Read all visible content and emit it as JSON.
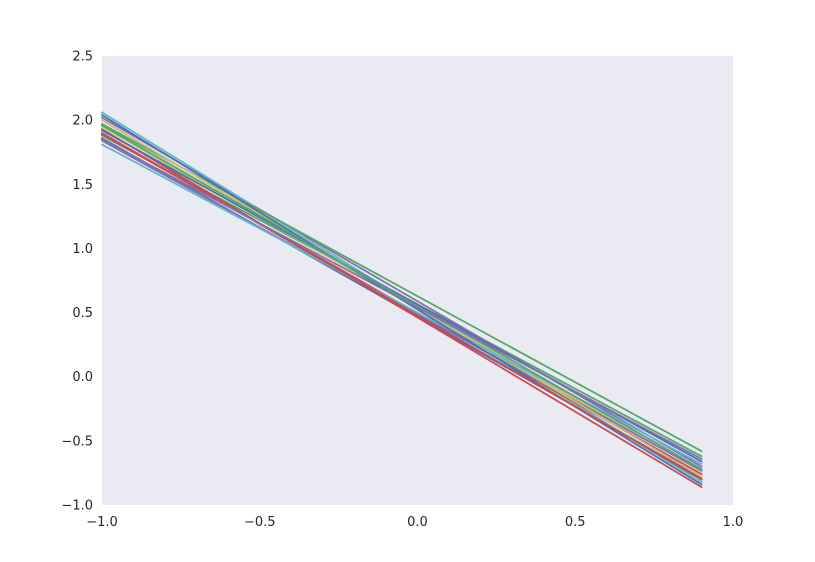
{
  "chart_data": {
    "type": "line",
    "title": "",
    "xlabel": "",
    "ylabel": "",
    "xlim": [
      -1.0,
      1.0
    ],
    "ylim": [
      -1.0,
      2.5
    ],
    "grid": false,
    "legend": "none",
    "background": "#EAEAF2",
    "x_ticks": [
      -1.0,
      -0.5,
      0.0,
      0.5,
      1.0
    ],
    "x_tick_labels": [
      "−1.0",
      "−0.5",
      "0.0",
      "0.5",
      "1.0"
    ],
    "y_ticks": [
      -1.0,
      -0.5,
      0.0,
      0.5,
      1.0,
      1.5,
      2.0,
      2.5
    ],
    "y_tick_labels": [
      "−1.0",
      "−0.5",
      "0.0",
      "0.5",
      "1.0",
      "1.5",
      "2.0",
      "2.5"
    ],
    "x": [
      -1.0,
      0.9
    ],
    "series": [
      {
        "color": "#4C72B0",
        "values": [
          1.86,
          -0.79
        ]
      },
      {
        "color": "#55A868",
        "values": [
          1.88,
          -0.62
        ]
      },
      {
        "color": "#C44E52",
        "values": [
          1.93,
          -0.86
        ]
      },
      {
        "color": "#8172B2",
        "values": [
          2.02,
          -0.7
        ]
      },
      {
        "color": "#CCB974",
        "values": [
          1.95,
          -0.74
        ]
      },
      {
        "color": "#64B5CD",
        "values": [
          2.06,
          -0.82
        ]
      },
      {
        "color": "#4C72B0",
        "values": [
          1.92,
          -0.66
        ]
      },
      {
        "color": "#55A868",
        "values": [
          1.97,
          -0.58
        ]
      },
      {
        "color": "#C44E52",
        "values": [
          1.89,
          -0.76
        ]
      },
      {
        "color": "#8172B2",
        "values": [
          1.84,
          -0.73
        ]
      },
      {
        "color": "#CCB974",
        "values": [
          2.0,
          -0.78
        ]
      },
      {
        "color": "#64B5CD",
        "values": [
          1.81,
          -0.68
        ]
      },
      {
        "color": "#4C72B0",
        "values": [
          2.04,
          -0.84
        ]
      },
      {
        "color": "#55A868",
        "values": [
          1.96,
          -0.72
        ]
      },
      {
        "color": "#C44E52",
        "values": [
          1.9,
          -0.8
        ]
      },
      {
        "color": "#8172B2",
        "values": [
          1.85,
          -0.64
        ]
      }
    ]
  }
}
